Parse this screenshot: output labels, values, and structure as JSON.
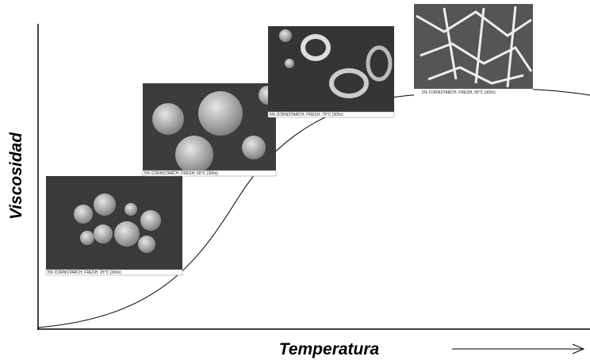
{
  "axes": {
    "y_label": "Viscosidad",
    "x_label": "Temperatura"
  },
  "micrographs": [
    {
      "caption": "5% CORNSTARCH, FRESH, 25°C (300x)"
    },
    {
      "caption": "5% CORNSTARCH, FRESH, 60°C (300x)"
    },
    {
      "caption": "5% CORNSTARCH, FRESH, 70°C (300x)"
    },
    {
      "caption": "5% CORNSTARCH, FRESH, 90°C (300x)"
    }
  ]
}
